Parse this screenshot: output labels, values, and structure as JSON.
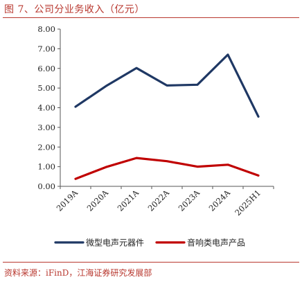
{
  "figure": {
    "caption": "图 7、公司分业务收入（亿元）",
    "source": "资料来源：iFinD，江海证券研究发展部"
  },
  "chart_data": {
    "type": "line",
    "title": "",
    "xlabel": "",
    "ylabel": "",
    "categories": [
      "2019A",
      "2020A",
      "2021A",
      "2022A",
      "2023A",
      "2024A",
      "2025H1"
    ],
    "y_tick_labels": [
      "0.00",
      "1.00",
      "2.00",
      "3.00",
      "4.00",
      "5.00",
      "6.00",
      "7.00",
      "8.00"
    ],
    "ylim": [
      0,
      8
    ],
    "grid": false,
    "legend_position": "bottom",
    "series": [
      {
        "name": "微型电声元器件",
        "color": "#1f3864",
        "values": [
          4.05,
          5.1,
          6.02,
          5.13,
          5.17,
          6.7,
          3.55
        ]
      },
      {
        "name": "音响类电声产品",
        "color": "#c00000",
        "values": [
          0.38,
          0.98,
          1.44,
          1.28,
          1.0,
          1.1,
          0.55
        ]
      }
    ]
  }
}
